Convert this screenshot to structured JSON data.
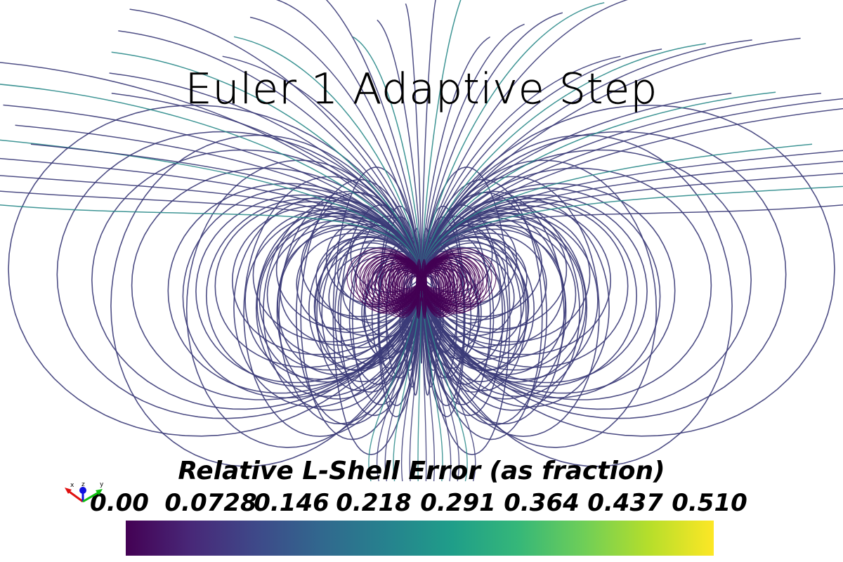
{
  "title": "Euler 1 Adaptive Step",
  "colorbar": {
    "title": "Relative L-Shell Error (as fraction)",
    "ticks": [
      "0.00",
      "0.0728",
      "0.146",
      "0.218",
      "0.291",
      "0.364",
      "0.437",
      "0.510"
    ],
    "range": [
      0.0,
      0.51
    ],
    "colormap": "viridis",
    "colors": [
      "#440154",
      "#482878",
      "#3e4989",
      "#31688e",
      "#26828e",
      "#1f9e89",
      "#35b779",
      "#6ece58",
      "#b5de2b",
      "#fde725"
    ]
  },
  "orientation_axes": {
    "labels": [
      "x",
      "z",
      "y"
    ],
    "colors": [
      "#e01010",
      "#1010e0",
      "#10c010"
    ]
  },
  "field_lines": {
    "line_color": "#3b3b78",
    "core_color": "#440154",
    "accent_color": "#2a8a8a"
  }
}
